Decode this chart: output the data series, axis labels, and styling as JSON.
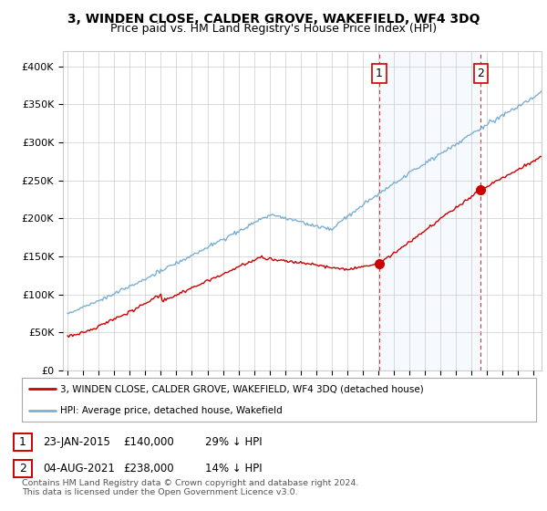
{
  "title": "3, WINDEN CLOSE, CALDER GROVE, WAKEFIELD, WF4 3DQ",
  "subtitle": "Price paid vs. HM Land Registry's House Price Index (HPI)",
  "title_fontsize": 10,
  "subtitle_fontsize": 9,
  "ylabel_ticks": [
    "£0",
    "£50K",
    "£100K",
    "£150K",
    "£200K",
    "£250K",
    "£300K",
    "£350K",
    "£400K"
  ],
  "ytick_values": [
    0,
    50000,
    100000,
    150000,
    200000,
    250000,
    300000,
    350000,
    400000
  ],
  "ylim": [
    0,
    420000
  ],
  "xlim_start": 1994.7,
  "xlim_end": 2025.5,
  "hpi_color": "#7ab0d4",
  "price_color": "#cc0000",
  "vline_color": "#cc0000",
  "shade_color": "#ddeeff",
  "legend_label1": "3, WINDEN CLOSE, CALDER GROVE, WAKEFIELD, WF4 3DQ (detached house)",
  "legend_label2": "HPI: Average price, detached house, Wakefield",
  "note1_date": "23-JAN-2015",
  "note1_price": "£140,000",
  "note1_pct": "29% ↓ HPI",
  "note2_date": "04-AUG-2021",
  "note2_price": "£238,000",
  "note2_pct": "14% ↓ HPI",
  "footnote": "Contains HM Land Registry data © Crown copyright and database right 2024.\nThis data is licensed under the Open Government Licence v3.0.",
  "background_color": "#ffffff",
  "grid_color": "#cccccc",
  "sale1_year": 2015.058,
  "sale1_price": 140000,
  "sale2_year": 2021.588,
  "sale2_price": 238000
}
